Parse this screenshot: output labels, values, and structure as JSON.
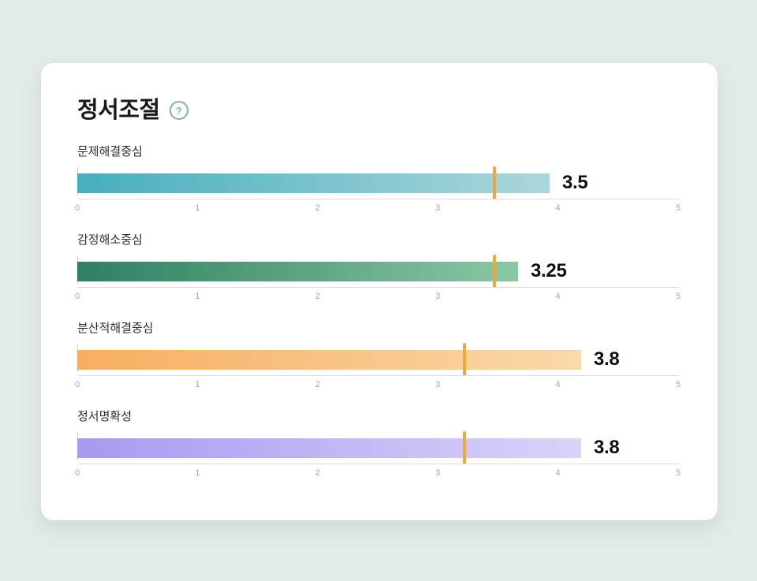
{
  "page": {
    "background": "#E2EBE8"
  },
  "card": {
    "title": "정서조절",
    "help_icon_glyph": "?"
  },
  "chart_data": {
    "type": "bar",
    "orientation": "horizontal",
    "title": "정서조절",
    "axis": {
      "min": 0,
      "max": 5,
      "ticks": [
        "0",
        "1",
        "2",
        "3",
        "4",
        "5"
      ],
      "grid": false
    },
    "marker_color": "#F0A73C",
    "rows": [
      {
        "label": "문제해결중심",
        "value": 3.5,
        "value_label": "3.5",
        "marker": 3.47,
        "bar_end": 3.93,
        "color_from": "#45AFBD",
        "color_to": "#ABD7DB"
      },
      {
        "label": "감정해소중심",
        "value": 3.25,
        "value_label": "3.25",
        "marker": 3.47,
        "bar_end": 3.67,
        "color_from": "#2E8062",
        "color_to": "#8BC7A5"
      },
      {
        "label": "분산적해결중심",
        "value": 3.8,
        "value_label": "3.8",
        "marker": 3.22,
        "bar_end": 4.19,
        "color_from": "#F7AE60",
        "color_to": "#FAD9A9"
      },
      {
        "label": "정서명확성",
        "value": 3.8,
        "value_label": "3.8",
        "marker": 3.22,
        "bar_end": 4.19,
        "color_from": "#A79AF0",
        "color_to": "#D9D3F9"
      }
    ]
  }
}
